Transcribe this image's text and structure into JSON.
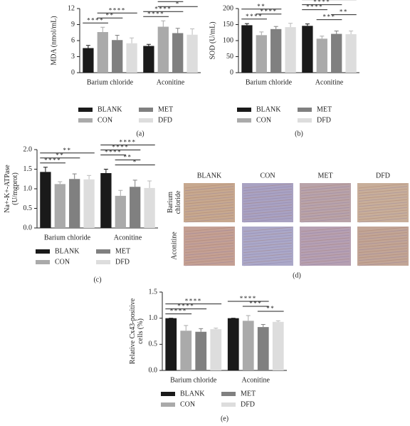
{
  "chart_data": [
    {
      "type": "bar",
      "panel_label": "(a)",
      "ylabel": [
        "MDA (nmol/mL)"
      ],
      "categories": [
        "Barium chloride",
        "Aconitine"
      ],
      "ylim": [
        0,
        12
      ],
      "yticks": [
        0,
        3,
        6,
        9,
        12
      ],
      "series": [
        {
          "name": "BLANK",
          "color": "#1a1a1a",
          "values": [
            4.6,
            5.0
          ],
          "errors": [
            0.5,
            0.3
          ]
        },
        {
          "name": "CON",
          "color": "#aaaaaa",
          "values": [
            7.6,
            8.6
          ],
          "errors": [
            0.9,
            1.1
          ]
        },
        {
          "name": "MET",
          "color": "#808080",
          "values": [
            6.1,
            7.4
          ],
          "errors": [
            0.9,
            0.9
          ]
        },
        {
          "name": "DFD",
          "color": "#dddddd",
          "values": [
            5.5,
            7.1
          ],
          "errors": [
            1.0,
            1.1
          ]
        }
      ],
      "significance": [
        {
          "category": 0,
          "pair": [
            0,
            1
          ],
          "label": "****"
        },
        {
          "category": 0,
          "pair": [
            1,
            2
          ],
          "label": "**"
        },
        {
          "category": 0,
          "pair": [
            1,
            3
          ],
          "label": "****"
        },
        {
          "category": 1,
          "pair": [
            0,
            1
          ],
          "label": "****"
        },
        {
          "category": 1,
          "pair": [
            0,
            2
          ],
          "label": "****"
        },
        {
          "category": 1,
          "pair": [
            1,
            3
          ],
          "label": "*"
        },
        {
          "category": 1,
          "pair": [
            1,
            2
          ],
          "label": "**"
        }
      ]
    },
    {
      "type": "bar",
      "panel_label": "(b)",
      "ylabel": [
        "SOD (U/mL)"
      ],
      "categories": [
        "Barium chloride",
        "Aconitine"
      ],
      "ylim": [
        0,
        200
      ],
      "yticks": [
        0,
        50,
        100,
        150,
        200
      ],
      "series": [
        {
          "name": "BLANK",
          "color": "#1a1a1a",
          "values": [
            148,
            146
          ],
          "errors": [
            5,
            6
          ]
        },
        {
          "name": "CON",
          "color": "#aaaaaa",
          "values": [
            117,
            106
          ],
          "errors": [
            10,
            8
          ]
        },
        {
          "name": "MET",
          "color": "#808080",
          "values": [
            136,
            121
          ],
          "errors": [
            8,
            9
          ]
        },
        {
          "name": "DFD",
          "color": "#dddddd",
          "values": [
            142,
            120
          ],
          "errors": [
            12,
            10
          ]
        }
      ],
      "significance": [
        {
          "category": 0,
          "pair": [
            0,
            1
          ],
          "label": "****"
        },
        {
          "category": 0,
          "pair": [
            1,
            2
          ],
          "label": "****"
        },
        {
          "category": 0,
          "pair": [
            0,
            2
          ],
          "label": "**"
        },
        {
          "category": 1,
          "pair": [
            1,
            2
          ],
          "label": "***"
        },
        {
          "category": 1,
          "pair": [
            2,
            3
          ],
          "label": "**"
        },
        {
          "category": 1,
          "pair": [
            0,
            1
          ],
          "label": "****"
        },
        {
          "category": 1,
          "pair": [
            0,
            2
          ],
          "label": "****"
        },
        {
          "category": 1,
          "pair": [
            0,
            3
          ],
          "label": "****"
        }
      ]
    },
    {
      "type": "bar",
      "panel_label": "(c)",
      "ylabel": [
        "Na+-K+-ATPase",
        "(U/mgprot)"
      ],
      "categories": [
        "Barium chloride",
        "Aconitine"
      ],
      "ylim": [
        0,
        2
      ],
      "yticks": [
        {
          "value": 0,
          "label": "0.0"
        },
        0.5,
        {
          "value": 1,
          "label": "1.0"
        },
        1.5,
        {
          "value": 2,
          "label": "2.0"
        }
      ],
      "series": [
        {
          "name": "BLANK",
          "color": "#1a1a1a",
          "values": [
            1.43,
            1.4
          ],
          "errors": [
            0.12,
            0.1
          ]
        },
        {
          "name": "CON",
          "color": "#aaaaaa",
          "values": [
            1.12,
            0.82
          ],
          "errors": [
            0.06,
            0.14
          ]
        },
        {
          "name": "MET",
          "color": "#808080",
          "values": [
            1.25,
            1.05
          ],
          "errors": [
            0.13,
            0.17
          ]
        },
        {
          "name": "DFD",
          "color": "#dddddd",
          "values": [
            1.24,
            1.02
          ],
          "errors": [
            0.1,
            0.18
          ]
        }
      ],
      "significance": [
        {
          "category": 0,
          "pair": [
            0,
            1
          ],
          "label": "****"
        },
        {
          "category": 0,
          "pair": [
            0,
            2
          ],
          "label": "**"
        },
        {
          "category": 0,
          "pair": [
            0,
            3
          ],
          "label": "**"
        },
        {
          "category": 1,
          "pair": [
            1,
            3
          ],
          "label": "*"
        },
        {
          "category": 1,
          "pair": [
            1,
            2
          ],
          "label": "**"
        },
        {
          "category": 1,
          "pair": [
            0,
            1
          ],
          "label": "****"
        },
        {
          "category": 1,
          "pair": [
            0,
            2
          ],
          "label": "****"
        },
        {
          "category": 1,
          "pair": [
            0,
            3
          ],
          "label": "****"
        }
      ]
    },
    {
      "type": "bar",
      "panel_label": "(e)",
      "ylabel": [
        "Relative Cx43-positive",
        "cells (%)"
      ],
      "categories": [
        "Barium chloride",
        "Aconitine"
      ],
      "ylim": [
        0,
        1.5
      ],
      "yticks": [
        {
          "value": 0,
          "label": "0.0"
        },
        0.5,
        {
          "value": 1,
          "label": "1.0"
        },
        1.5
      ],
      "series": [
        {
          "name": "BLANK",
          "color": "#1a1a1a",
          "values": [
            1.0,
            1.0
          ],
          "errors": [
            0.0,
            0.0
          ]
        },
        {
          "name": "CON",
          "color": "#aaaaaa",
          "values": [
            0.76,
            0.95
          ],
          "errors": [
            0.1,
            0.1
          ]
        },
        {
          "name": "MET",
          "color": "#808080",
          "values": [
            0.74,
            0.83
          ],
          "errors": [
            0.06,
            0.05
          ]
        },
        {
          "name": "DFD",
          "color": "#dddddd",
          "values": [
            0.79,
            0.93
          ],
          "errors": [
            0.02,
            0.02
          ]
        }
      ],
      "significance": [
        {
          "category": 0,
          "pair": [
            0,
            1
          ],
          "label": "****"
        },
        {
          "category": 0,
          "pair": [
            0,
            2
          ],
          "label": "****"
        },
        {
          "category": 0,
          "pair": [
            0,
            3
          ],
          "label": "****"
        },
        {
          "category": 1,
          "pair": [
            2,
            3
          ],
          "label": "**"
        },
        {
          "category": 1,
          "pair": [
            1,
            2
          ],
          "label": "***"
        },
        {
          "category": 1,
          "pair": [
            0,
            2
          ],
          "label": "****"
        }
      ]
    }
  ],
  "image_panel": {
    "panel_label": "(d)",
    "columns": [
      "BLANK",
      "CON",
      "MET",
      "DFD"
    ],
    "rows": [
      [
        "Barium",
        "chloride"
      ],
      [
        "Aconitine"
      ]
    ]
  }
}
